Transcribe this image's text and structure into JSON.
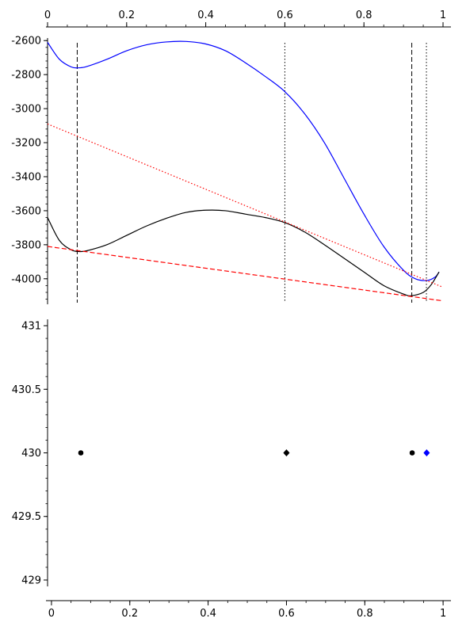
{
  "chart_data": [
    {
      "type": "line",
      "title": "",
      "xlabel": "",
      "ylabel": "",
      "xlim": [
        0,
        1.02
      ],
      "ylim": [
        -4150,
        -2585
      ],
      "x_ticks": [
        0,
        0.2,
        0.4,
        0.6,
        0.8,
        1
      ],
      "x_tick_labels": [
        "0",
        "0.2",
        "0.4",
        "0.6",
        "0.8",
        "1"
      ],
      "y_ticks": [
        -2600,
        -2800,
        -3000,
        -3200,
        -3400,
        -3600,
        -3800,
        -4000
      ],
      "y_tick_labels": [
        "-2600",
        "-2800",
        "-3000",
        "-3200",
        "-3400",
        "-3600",
        "-3800",
        "-4000"
      ],
      "x_axis_position": "top",
      "grid": false,
      "series": [
        {
          "color": "#0000ff",
          "style": "solid",
          "x": [
            0,
            0.03,
            0.06,
            0.08,
            0.1,
            0.15,
            0.2,
            0.25,
            0.3,
            0.35,
            0.4,
            0.45,
            0.5,
            0.55,
            0.6,
            0.65,
            0.7,
            0.75,
            0.8,
            0.85,
            0.9,
            0.93,
            0.96,
            0.98,
            0.99
          ],
          "y": [
            -2610,
            -2710,
            -2755,
            -2760,
            -2752,
            -2710,
            -2660,
            -2625,
            -2608,
            -2605,
            -2620,
            -2660,
            -2730,
            -2810,
            -2900,
            -3030,
            -3200,
            -3410,
            -3620,
            -3810,
            -3950,
            -4000,
            -4010,
            -3990,
            -3960
          ]
        },
        {
          "color": "#000000",
          "style": "solid",
          "x": [
            0,
            0.03,
            0.06,
            0.08,
            0.1,
            0.15,
            0.2,
            0.25,
            0.3,
            0.35,
            0.4,
            0.45,
            0.5,
            0.55,
            0.6,
            0.65,
            0.7,
            0.75,
            0.8,
            0.85,
            0.9,
            0.92,
            0.95,
            0.97,
            0.99
          ],
          "y": [
            -3640,
            -3775,
            -3830,
            -3840,
            -3835,
            -3800,
            -3745,
            -3690,
            -3645,
            -3610,
            -3597,
            -3600,
            -3620,
            -3640,
            -3670,
            -3725,
            -3800,
            -3880,
            -3960,
            -4040,
            -4090,
            -4100,
            -4080,
            -4035,
            -3960
          ]
        },
        {
          "color": "#ff0000",
          "style": "dashed",
          "x": [
            0,
            1.0
          ],
          "y": [
            -3810,
            -4130
          ]
        },
        {
          "color": "#ff0000",
          "style": "dotted",
          "x": [
            0,
            1.0
          ],
          "y": [
            -3090,
            -4050
          ]
        }
      ],
      "vertical_lines": [
        {
          "x": 0.075,
          "style": "dashed",
          "color": "#000000"
        },
        {
          "x": 0.6,
          "style": "dotted",
          "color": "#000000"
        },
        {
          "x": 0.921,
          "style": "dashed",
          "color": "#000000"
        },
        {
          "x": 0.958,
          "style": "dotted",
          "color": "#000000"
        }
      ]
    },
    {
      "type": "scatter",
      "title": "",
      "xlabel": "",
      "ylabel": "",
      "xlim": [
        -0.01,
        1.02
      ],
      "ylim": [
        428.95,
        431.05
      ],
      "x_ticks": [
        0,
        0.2,
        0.4,
        0.6,
        0.8,
        1
      ],
      "x_tick_labels": [
        "0",
        "0.2",
        "0.4",
        "0.6",
        "0.8",
        "1"
      ],
      "y_ticks": [
        431,
        430.5,
        430,
        429.5,
        429
      ],
      "y_tick_labels": [
        "431",
        "430.5",
        "430",
        "429.5",
        "429"
      ],
      "x_axis_position": "bottom",
      "grid": false,
      "points": [
        {
          "x": 0.075,
          "y": 430,
          "marker": "circle",
          "color": "#000000"
        },
        {
          "x": 0.6,
          "y": 430,
          "marker": "diamond",
          "color": "#000000"
        },
        {
          "x": 0.921,
          "y": 430,
          "marker": "circle",
          "color": "#000000"
        },
        {
          "x": 0.958,
          "y": 430,
          "marker": "diamond",
          "color": "#0000ff"
        }
      ]
    }
  ]
}
